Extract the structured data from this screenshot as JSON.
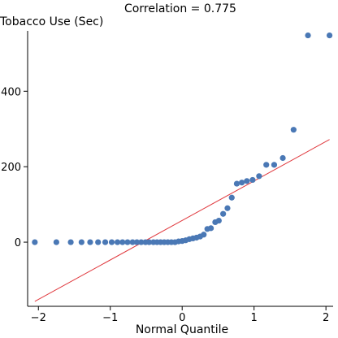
{
  "chart_data": {
    "type": "scatter",
    "title": "Correlation = 0.775",
    "xlabel": "Normal Quantile",
    "ylabel": "Tobacco Use (Sec)",
    "xlim": [
      -2.15,
      2.1
    ],
    "ylim": [
      -170,
      560
    ],
    "x_ticks": [
      -2,
      -1,
      0,
      1,
      2
    ],
    "y_ticks": [
      0,
      200,
      400
    ],
    "grid": false,
    "colors": {
      "points": "#4a78b5",
      "line": "#e0393e"
    },
    "points": {
      "x": [
        -2.05,
        -1.75,
        -1.55,
        -1.4,
        -1.28,
        -1.17,
        -1.07,
        -0.98,
        -0.9,
        -0.83,
        -0.76,
        -0.69,
        -0.63,
        -0.57,
        -0.51,
        -0.46,
        -0.4,
        -0.35,
        -0.3,
        -0.25,
        -0.2,
        -0.15,
        -0.1,
        -0.05,
        0.0,
        0.05,
        0.1,
        0.15,
        0.2,
        0.25,
        0.3,
        0.35,
        0.4,
        0.46,
        0.51,
        0.57,
        0.63,
        0.69,
        0.76,
        0.83,
        0.9,
        0.98,
        1.07,
        1.17,
        1.28,
        1.4,
        1.55,
        1.75,
        2.05
      ],
      "y": [
        0,
        0,
        0,
        0,
        0,
        0,
        0,
        0,
        0,
        0,
        0,
        0,
        0,
        0,
        0,
        0,
        0,
        0,
        0,
        0,
        0,
        0,
        0,
        2,
        3,
        5,
        8,
        10,
        12,
        15,
        20,
        35,
        37,
        53,
        57,
        75,
        90,
        118,
        155,
        158,
        162,
        165,
        175,
        205,
        205,
        223,
        298,
        548,
        548
      ],
      "note_count": 49
    },
    "reference_line": {
      "x": [
        -2.05,
        2.05
      ],
      "y": [
        -157,
        272
      ]
    }
  }
}
